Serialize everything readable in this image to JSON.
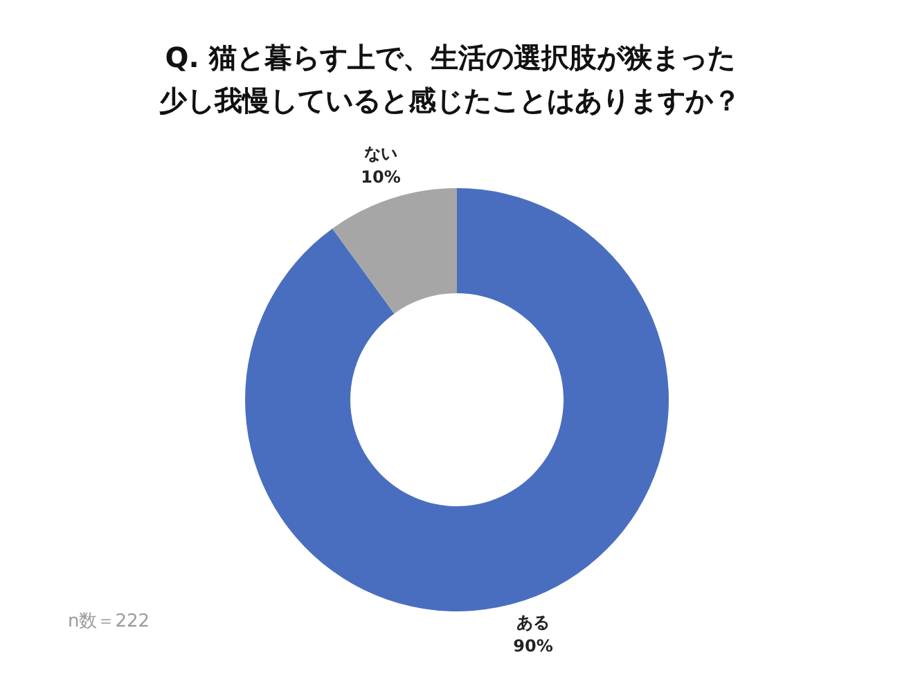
{
  "chart_data": {
    "type": "donut",
    "title": "Q. 猫と暮らす上で、生活の選択肢が狭まった少し我慢していると感じたことはありますか？",
    "categories": [
      "ある",
      "ない"
    ],
    "values": [
      90,
      10
    ],
    "value_labels": [
      "90%",
      "10%"
    ],
    "colors": [
      "#4a6ebf",
      "#a6a6a6"
    ],
    "annotations": [
      "n数＝222"
    ]
  }
}
